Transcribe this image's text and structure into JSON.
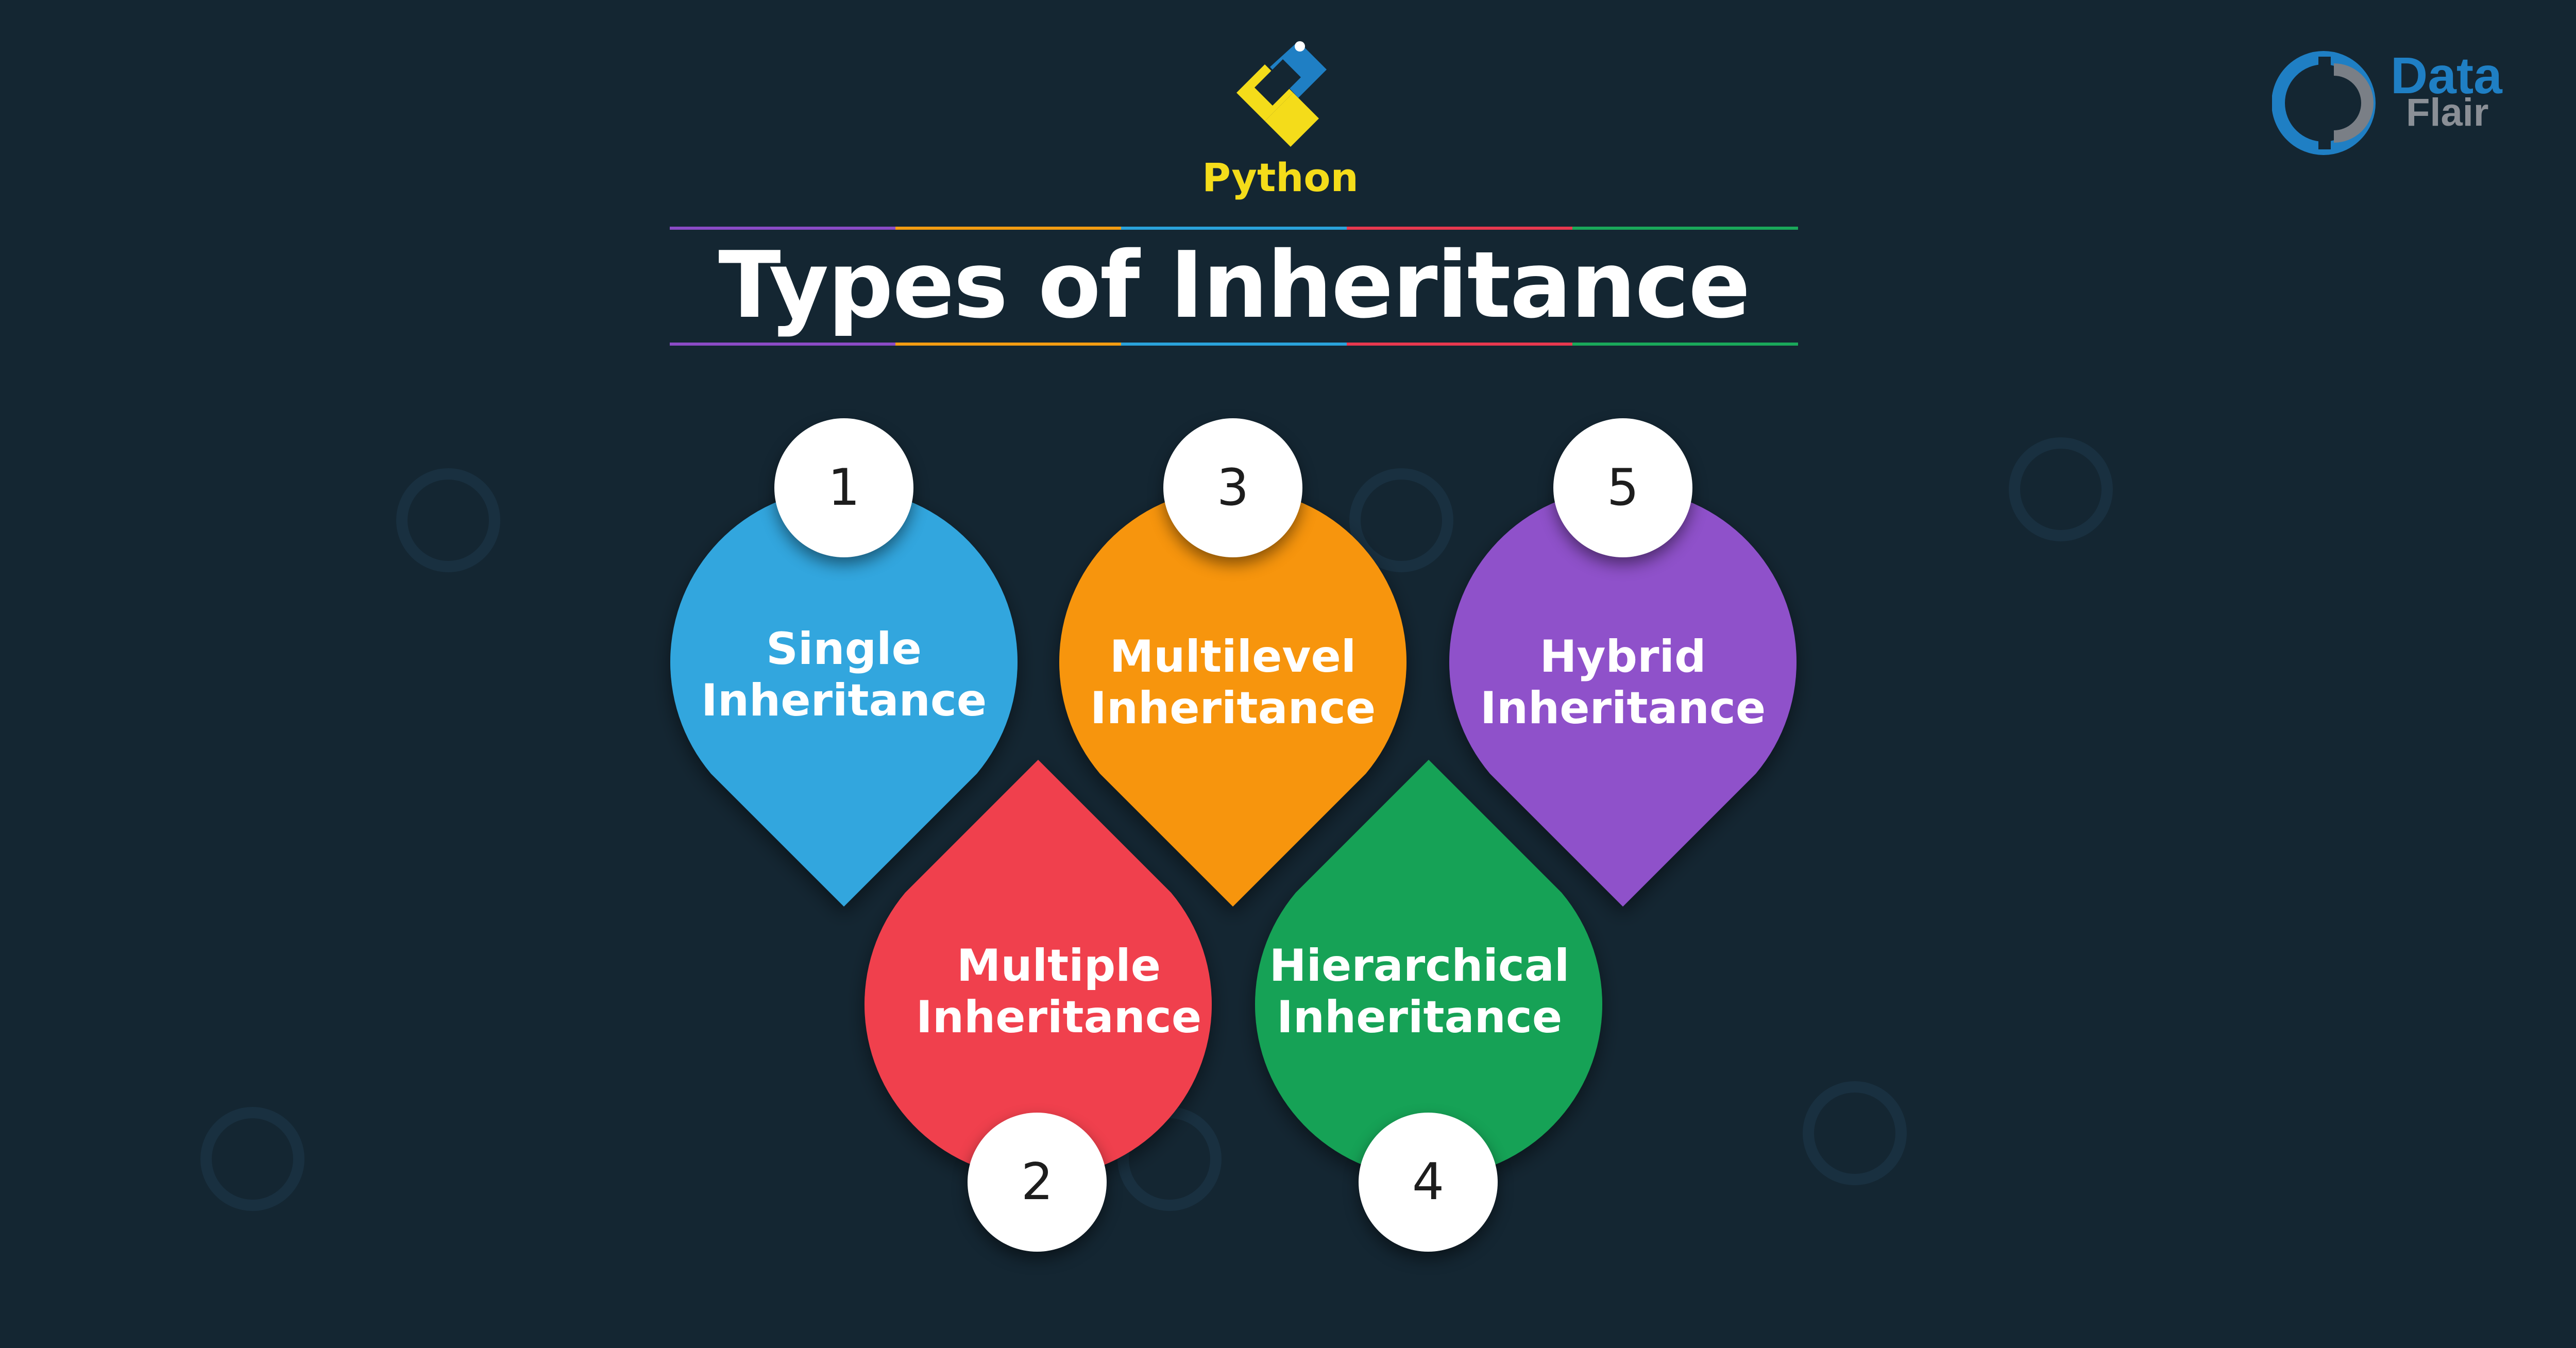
{
  "header": {
    "python_label": "Python",
    "title": "Types of Inheritance"
  },
  "brand": {
    "line1": "Data",
    "line2": "Flair"
  },
  "watermark": {
    "line1": "Data",
    "line2": "Flair"
  },
  "types": [
    {
      "number": "1",
      "line1": "Single",
      "line2": "Inheritance",
      "color_top": "#2fa2d8",
      "color_bottom": "#3aa9e0"
    },
    {
      "number": "2",
      "line1": "Multiple",
      "line2": "Inheritance",
      "color_top": "#f34652",
      "color_bottom": "#e63a46"
    },
    {
      "number": "3",
      "line1": "Multilevel",
      "line2": "Inheritance",
      "color_top": "#f5900f",
      "color_bottom": "#fa9c0a"
    },
    {
      "number": "4",
      "line1": "Hierarchical",
      "line2": "Inheritance",
      "color_top": "#1aa85a",
      "color_bottom": "#16964f"
    },
    {
      "number": "5",
      "line1": "Hybrid",
      "line2": "Inheritance",
      "color_top": "#8a4cc4",
      "color_bottom": "#9557cf"
    }
  ],
  "colors": {
    "background": "#142632",
    "python_yellow": "#f4dc1a",
    "python_blue": "#1f7fc4",
    "rule_segments": [
      "#8b4bc6",
      "#f39c12",
      "#2aa2da",
      "#e8384f",
      "#1aa85a"
    ]
  }
}
